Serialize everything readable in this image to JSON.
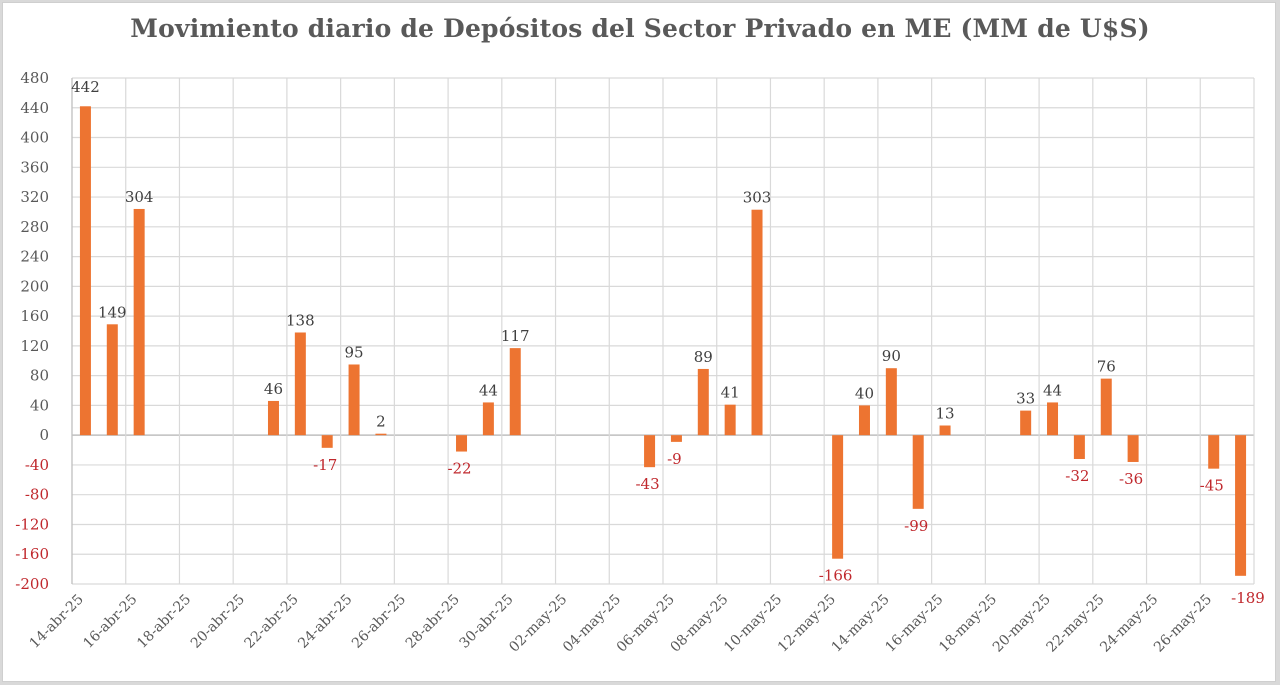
{
  "chart_data": {
    "type": "bar",
    "title": "Movimiento diario de Depósitos del Sector Privado en ME (MM de U$S)",
    "xlabel": "",
    "ylabel": "",
    "ylim": [
      -200,
      480
    ],
    "yticks": [
      480,
      440,
      400,
      360,
      320,
      280,
      240,
      200,
      160,
      120,
      80,
      40,
      0,
      -40,
      -80,
      -120,
      -160,
      -200
    ],
    "grid": true,
    "legend": "none",
    "colors": {
      "bar": "#ed7431",
      "negative_label": "#c0282d",
      "positive_label": "#404040",
      "grid": "#d9d9d9"
    },
    "x_axis": {
      "start_day_index": 0,
      "days": 44,
      "tick_every_days": 2,
      "tick_labels": [
        "14-abr-25",
        "16-abr-25",
        "18-abr-25",
        "20-abr-25",
        "22-abr-25",
        "24-abr-25",
        "26-abr-25",
        "28-abr-25",
        "30-abr-25",
        "02-may-25",
        "04-may-25",
        "06-may-25",
        "08-may-25",
        "10-may-25",
        "12-may-25",
        "14-may-25",
        "16-may-25",
        "18-may-25",
        "20-may-25",
        "22-may-25",
        "24-may-25",
        "26-may-25"
      ]
    },
    "points": [
      {
        "date": "14-abr-25",
        "day": 0,
        "value": 442
      },
      {
        "date": "15-abr-25",
        "day": 1,
        "value": 149
      },
      {
        "date": "16-abr-25",
        "day": 2,
        "value": 304
      },
      {
        "date": "21-abr-25",
        "day": 7,
        "value": 46
      },
      {
        "date": "22-abr-25",
        "day": 8,
        "value": 138
      },
      {
        "date": "23-abr-25",
        "day": 9,
        "value": -17
      },
      {
        "date": "24-abr-25",
        "day": 10,
        "value": 95
      },
      {
        "date": "25-abr-25",
        "day": 11,
        "value": 2
      },
      {
        "date": "28-abr-25",
        "day": 14,
        "value": -22
      },
      {
        "date": "29-abr-25",
        "day": 15,
        "value": 44
      },
      {
        "date": "30-abr-25",
        "day": 16,
        "value": 117
      },
      {
        "date": "05-may-25",
        "day": 21,
        "value": -43
      },
      {
        "date": "06-may-25",
        "day": 22,
        "value": -9
      },
      {
        "date": "07-may-25",
        "day": 23,
        "value": 89
      },
      {
        "date": "08-may-25",
        "day": 24,
        "value": 41
      },
      {
        "date": "09-may-25",
        "day": 25,
        "value": 303
      },
      {
        "date": "12-may-25",
        "day": 28,
        "value": -166
      },
      {
        "date": "13-may-25",
        "day": 29,
        "value": 40
      },
      {
        "date": "14-may-25",
        "day": 30,
        "value": 90
      },
      {
        "date": "15-may-25",
        "day": 31,
        "value": -99
      },
      {
        "date": "16-may-25",
        "day": 32,
        "value": 13
      },
      {
        "date": "19-may-25",
        "day": 35,
        "value": 33
      },
      {
        "date": "20-may-25",
        "day": 36,
        "value": 44
      },
      {
        "date": "21-may-25",
        "day": 37,
        "value": -32
      },
      {
        "date": "22-may-25",
        "day": 38,
        "value": 76
      },
      {
        "date": "23-may-25",
        "day": 39,
        "value": -36
      },
      {
        "date": "26-may-25",
        "day": 42,
        "value": -45
      },
      {
        "date": "27-may-25",
        "day": 43,
        "value": -189
      }
    ]
  }
}
